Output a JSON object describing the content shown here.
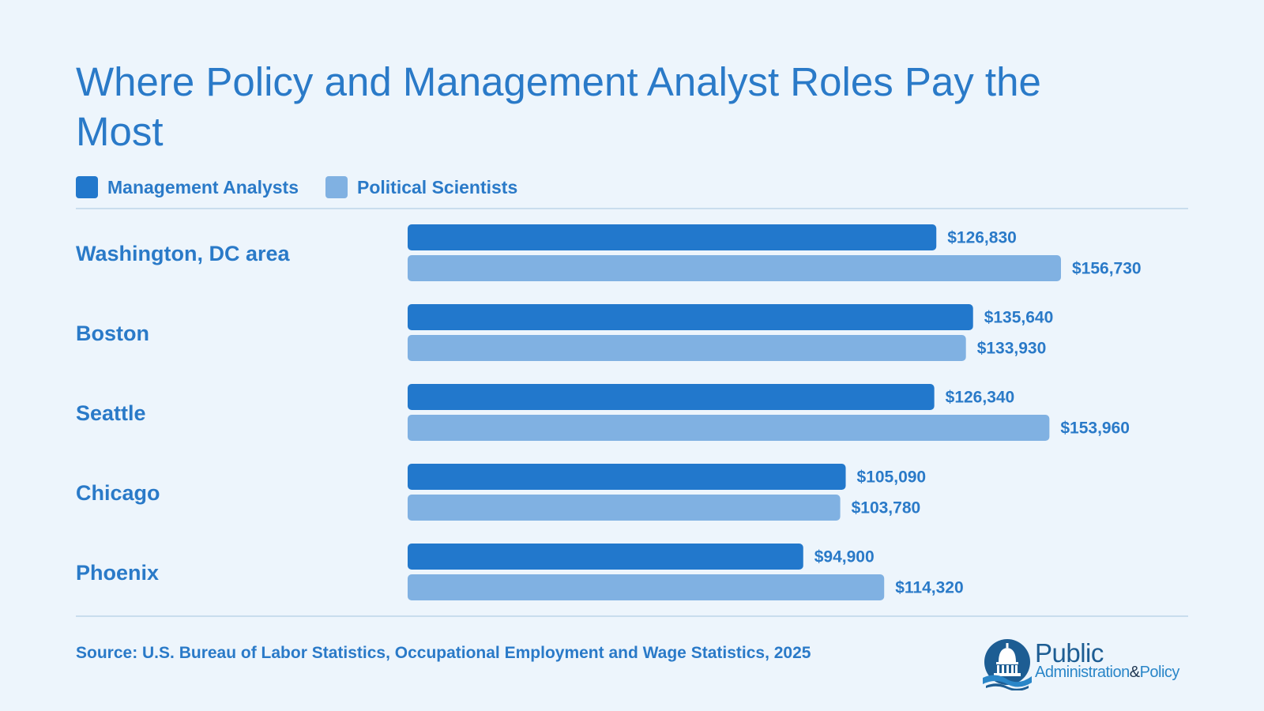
{
  "title": "Where Policy and Management Analyst Roles Pay the Most",
  "legend": [
    {
      "label": "Management Analysts",
      "color": "#2278cc"
    },
    {
      "label": "Political Scientists",
      "color": "#80b1e2"
    }
  ],
  "chart_data": {
    "type": "bar",
    "orientation": "horizontal",
    "title": "Where Policy and Management Analyst Roles Pay the Most",
    "categories": [
      "Washington, DC area",
      "Boston",
      "Seattle",
      "Chicago",
      "Phoenix"
    ],
    "series": [
      {
        "name": "Management Analysts",
        "color": "#2278cc",
        "values": [
          126830,
          135640,
          126340,
          105090,
          94900
        ],
        "labels": [
          "$126,830",
          "$135,640",
          "$126,340",
          "$105,090",
          "$94,900"
        ]
      },
      {
        "name": "Political Scientists",
        "color": "#80b1e2",
        "values": [
          156730,
          133930,
          153960,
          103780,
          114320
        ],
        "labels": [
          "$156,730",
          "$133,930",
          "$153,960",
          "$103,780",
          "$114,320"
        ]
      }
    ],
    "xlim": [
      0,
      156730
    ],
    "grid": false,
    "legend_position": "top-left"
  },
  "source": "Source: U.S. Bureau of Labor Statistics, Occupational Employment and Wage Statistics, 2025",
  "logo": {
    "line1": "Public",
    "line2a": "Administration",
    "line2b": "&",
    "line2c": "Policy"
  }
}
